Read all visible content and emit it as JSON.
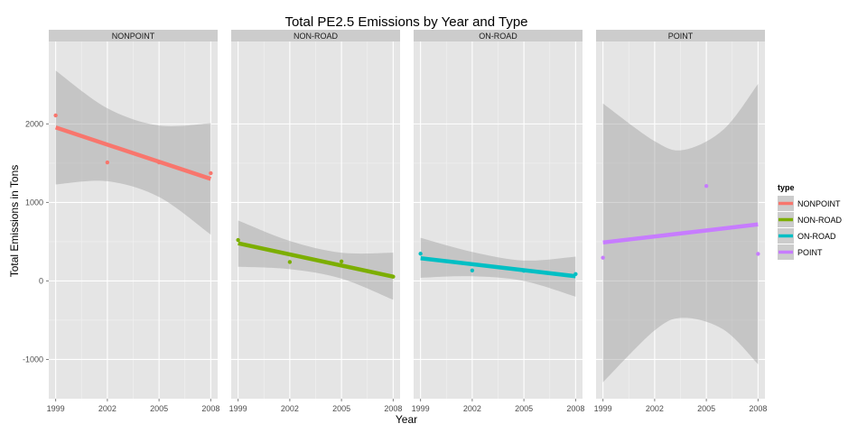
{
  "chart_data": {
    "type": "scatter",
    "title": "Total PE2.5 Emissions by Year and Type",
    "xlabel": "Year",
    "ylabel": "Total Emissions in Tons",
    "x_ticks": [
      1999,
      2002,
      2005,
      2008
    ],
    "y_ticks": [
      -1000,
      0,
      1000,
      2000
    ],
    "xlim": [
      1998.6,
      2008.4
    ],
    "ylim": [
      -1500,
      3050
    ],
    "legend": {
      "title": "type",
      "position": "right"
    },
    "grid": true,
    "panels": [
      {
        "name": "NONPOINT",
        "color": "#F8766D",
        "points": [
          {
            "x": 1999,
            "y": 2108
          },
          {
            "x": 2002,
            "y": 1510
          },
          {
            "x": 2005,
            "y": 1510
          },
          {
            "x": 2008,
            "y": 1373
          }
        ],
        "trend": [
          {
            "x": 1999,
            "y": 1955
          },
          {
            "x": 2008,
            "y": 1300
          }
        ],
        "band": [
          {
            "x": 1999,
            "lo": 1230,
            "hi": 2680
          },
          {
            "x": 2002,
            "lo": 1270,
            "hi": 2200
          },
          {
            "x": 2005,
            "lo": 1070,
            "hi": 1980
          },
          {
            "x": 2008,
            "lo": 590,
            "hi": 2010
          }
        ]
      },
      {
        "name": "NON-ROAD",
        "color": "#7CAE00",
        "points": [
          {
            "x": 1999,
            "y": 522
          },
          {
            "x": 2002,
            "y": 241
          },
          {
            "x": 2005,
            "y": 248
          },
          {
            "x": 2008,
            "y": 55
          }
        ],
        "trend": [
          {
            "x": 1999,
            "y": 480
          },
          {
            "x": 2008,
            "y": 55
          }
        ],
        "band": [
          {
            "x": 1999,
            "lo": 180,
            "hi": 770
          },
          {
            "x": 2002,
            "lo": 150,
            "hi": 510
          },
          {
            "x": 2005,
            "lo": 30,
            "hi": 360
          },
          {
            "x": 2008,
            "lo": -240,
            "hi": 360
          }
        ]
      },
      {
        "name": "ON-ROAD",
        "color": "#00BFC4",
        "points": [
          {
            "x": 1999,
            "y": 347
          },
          {
            "x": 2002,
            "y": 134
          },
          {
            "x": 2005,
            "y": 130
          },
          {
            "x": 2008,
            "y": 88
          }
        ],
        "trend": [
          {
            "x": 1999,
            "y": 290
          },
          {
            "x": 2008,
            "y": 60
          }
        ],
        "band": [
          {
            "x": 1999,
            "lo": 40,
            "hi": 550
          },
          {
            "x": 2002,
            "lo": 60,
            "hi": 370
          },
          {
            "x": 2005,
            "lo": 0,
            "hi": 260
          },
          {
            "x": 2008,
            "lo": -200,
            "hi": 310
          }
        ]
      },
      {
        "name": "POINT",
        "color": "#C77CFF",
        "points": [
          {
            "x": 1999,
            "y": 296
          },
          {
            "x": 2005,
            "y": 1209
          },
          {
            "x": 2008,
            "y": 345
          }
        ],
        "trend": [
          {
            "x": 1999,
            "y": 490
          },
          {
            "x": 2008,
            "y": 720
          }
        ],
        "band": [
          {
            "x": 1999,
            "lo": -1290,
            "hi": 2260
          },
          {
            "x": 2002,
            "lo": -630,
            "hi": 1780
          },
          {
            "x": 2003.7,
            "lo": -470,
            "hi": 1670
          },
          {
            "x": 2006,
            "lo": -620,
            "hi": 1930
          },
          {
            "x": 2008,
            "lo": -1060,
            "hi": 2510
          }
        ]
      }
    ]
  }
}
